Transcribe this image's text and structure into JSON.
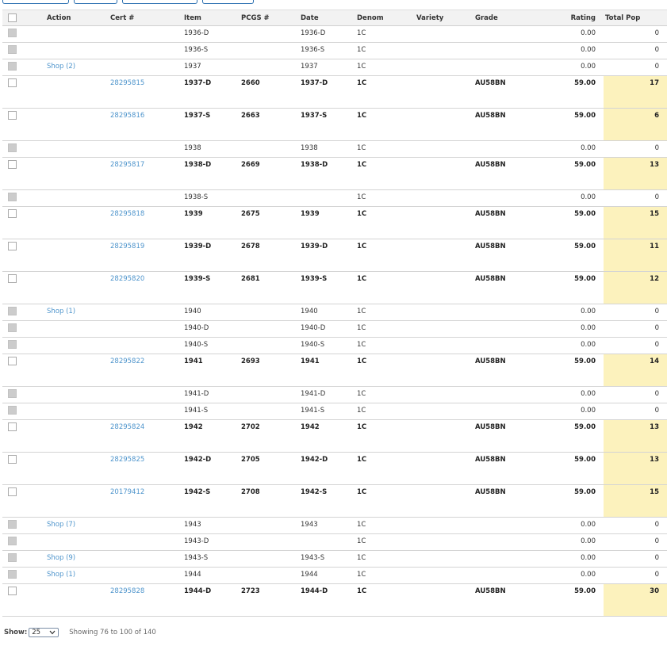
{
  "columns": {
    "action": "Action",
    "cert": "Cert #",
    "item": "Item",
    "pcgs": "PCGS #",
    "date": "Date",
    "denom": "Denom",
    "variety": "Variety",
    "grade": "Grade",
    "rating": "Rating",
    "total_pop": "Total Pop"
  },
  "rows": [
    {
      "checkbox": "disabled",
      "action": "",
      "cert": "",
      "item": "1936-D",
      "pcgs": "",
      "date": "1936-D",
      "denom": "1C",
      "variety": "",
      "grade": "",
      "rating": "0.00",
      "total_pop": "0",
      "tall": false
    },
    {
      "checkbox": "disabled",
      "action": "",
      "cert": "",
      "item": "1936-S",
      "pcgs": "",
      "date": "1936-S",
      "denom": "1C",
      "variety": "",
      "grade": "",
      "rating": "0.00",
      "total_pop": "0",
      "tall": false
    },
    {
      "checkbox": "disabled",
      "action": "Shop (2)",
      "cert": "",
      "item": "1937",
      "pcgs": "",
      "date": "1937",
      "denom": "1C",
      "variety": "",
      "grade": "",
      "rating": "0.00",
      "total_pop": "0",
      "tall": false
    },
    {
      "checkbox": "enabled",
      "action": "",
      "cert": "28295815",
      "item": "1937-D",
      "pcgs": "2660",
      "date": "1937-D",
      "denom": "1C",
      "variety": "",
      "grade": "AU58BN",
      "rating": "59.00",
      "total_pop": "17",
      "tall": true
    },
    {
      "checkbox": "enabled",
      "action": "",
      "cert": "28295816",
      "item": "1937-S",
      "pcgs": "2663",
      "date": "1937-S",
      "denom": "1C",
      "variety": "",
      "grade": "AU58BN",
      "rating": "59.00",
      "total_pop": "6",
      "tall": true
    },
    {
      "checkbox": "disabled",
      "action": "",
      "cert": "",
      "item": "1938",
      "pcgs": "",
      "date": "1938",
      "denom": "1C",
      "variety": "",
      "grade": "",
      "rating": "0.00",
      "total_pop": "0",
      "tall": false
    },
    {
      "checkbox": "enabled",
      "action": "",
      "cert": "28295817",
      "item": "1938-D",
      "pcgs": "2669",
      "date": "1938-D",
      "denom": "1C",
      "variety": "",
      "grade": "AU58BN",
      "rating": "59.00",
      "total_pop": "13",
      "tall": true
    },
    {
      "checkbox": "disabled",
      "action": "",
      "cert": "",
      "item": "1938-S",
      "pcgs": "",
      "date": "",
      "denom": "1C",
      "variety": "",
      "grade": "",
      "rating": "0.00",
      "total_pop": "0",
      "tall": false
    },
    {
      "checkbox": "enabled",
      "action": "",
      "cert": "28295818",
      "item": "1939",
      "pcgs": "2675",
      "date": "1939",
      "denom": "1C",
      "variety": "",
      "grade": "AU58BN",
      "rating": "59.00",
      "total_pop": "15",
      "tall": true
    },
    {
      "checkbox": "enabled",
      "action": "",
      "cert": "28295819",
      "item": "1939-D",
      "pcgs": "2678",
      "date": "1939-D",
      "denom": "1C",
      "variety": "",
      "grade": "AU58BN",
      "rating": "59.00",
      "total_pop": "11",
      "tall": true
    },
    {
      "checkbox": "enabled",
      "action": "",
      "cert": "28295820",
      "item": "1939-S",
      "pcgs": "2681",
      "date": "1939-S",
      "denom": "1C",
      "variety": "",
      "grade": "AU58BN",
      "rating": "59.00",
      "total_pop": "12",
      "tall": true
    },
    {
      "checkbox": "disabled",
      "action": "Shop (1)",
      "cert": "",
      "item": "1940",
      "pcgs": "",
      "date": "1940",
      "denom": "1C",
      "variety": "",
      "grade": "",
      "rating": "0.00",
      "total_pop": "0",
      "tall": false
    },
    {
      "checkbox": "disabled",
      "action": "",
      "cert": "",
      "item": "1940-D",
      "pcgs": "",
      "date": "1940-D",
      "denom": "1C",
      "variety": "",
      "grade": "",
      "rating": "0.00",
      "total_pop": "0",
      "tall": false
    },
    {
      "checkbox": "disabled",
      "action": "",
      "cert": "",
      "item": "1940-S",
      "pcgs": "",
      "date": "1940-S",
      "denom": "1C",
      "variety": "",
      "grade": "",
      "rating": "0.00",
      "total_pop": "0",
      "tall": false
    },
    {
      "checkbox": "enabled",
      "action": "",
      "cert": "28295822",
      "item": "1941",
      "pcgs": "2693",
      "date": "1941",
      "denom": "1C",
      "variety": "",
      "grade": "AU58BN",
      "rating": "59.00",
      "total_pop": "14",
      "tall": true
    },
    {
      "checkbox": "disabled",
      "action": "",
      "cert": "",
      "item": "1941-D",
      "pcgs": "",
      "date": "1941-D",
      "denom": "1C",
      "variety": "",
      "grade": "",
      "rating": "0.00",
      "total_pop": "0",
      "tall": false
    },
    {
      "checkbox": "disabled",
      "action": "",
      "cert": "",
      "item": "1941-S",
      "pcgs": "",
      "date": "1941-S",
      "denom": "1C",
      "variety": "",
      "grade": "",
      "rating": "0.00",
      "total_pop": "0",
      "tall": false
    },
    {
      "checkbox": "enabled",
      "action": "",
      "cert": "28295824",
      "item": "1942",
      "pcgs": "2702",
      "date": "1942",
      "denom": "1C",
      "variety": "",
      "grade": "AU58BN",
      "rating": "59.00",
      "total_pop": "13",
      "tall": true
    },
    {
      "checkbox": "enabled",
      "action": "",
      "cert": "28295825",
      "item": "1942-D",
      "pcgs": "2705",
      "date": "1942-D",
      "denom": "1C",
      "variety": "",
      "grade": "AU58BN",
      "rating": "59.00",
      "total_pop": "13",
      "tall": true
    },
    {
      "checkbox": "enabled",
      "action": "",
      "cert": "20179412",
      "item": "1942-S",
      "pcgs": "2708",
      "date": "1942-S",
      "denom": "1C",
      "variety": "",
      "grade": "AU58BN",
      "rating": "59.00",
      "total_pop": "15",
      "tall": true
    },
    {
      "checkbox": "disabled",
      "action": "Shop (7)",
      "cert": "",
      "item": "1943",
      "pcgs": "",
      "date": "1943",
      "denom": "1C",
      "variety": "",
      "grade": "",
      "rating": "0.00",
      "total_pop": "0",
      "tall": false
    },
    {
      "checkbox": "disabled",
      "action": "",
      "cert": "",
      "item": "1943-D",
      "pcgs": "",
      "date": "",
      "denom": "1C",
      "variety": "",
      "grade": "",
      "rating": "0.00",
      "total_pop": "0",
      "tall": false
    },
    {
      "checkbox": "disabled",
      "action": "Shop (9)",
      "cert": "",
      "item": "1943-S",
      "pcgs": "",
      "date": "1943-S",
      "denom": "1C",
      "variety": "",
      "grade": "",
      "rating": "0.00",
      "total_pop": "0",
      "tall": false
    },
    {
      "checkbox": "disabled",
      "action": "Shop (1)",
      "cert": "",
      "item": "1944",
      "pcgs": "",
      "date": "1944",
      "denom": "1C",
      "variety": "",
      "grade": "",
      "rating": "0.00",
      "total_pop": "0",
      "tall": false
    },
    {
      "checkbox": "enabled",
      "action": "",
      "cert": "28295828",
      "item": "1944-D",
      "pcgs": "2723",
      "date": "1944-D",
      "denom": "1C",
      "variety": "",
      "grade": "AU58BN",
      "rating": "59.00",
      "total_pop": "30",
      "tall": true
    }
  ],
  "footer": {
    "show_label": "Show:",
    "page_size": "25",
    "showing_text": "Showing 76 to 100 of 140"
  },
  "colors": {
    "link": "#4f95cc",
    "highlight": "#fcf2bd",
    "header_bg": "#f2f2f2",
    "checkbox_disabled": "#cccccc"
  },
  "icons": {
    "page_size_dropdown": "chevron-down-icon"
  }
}
